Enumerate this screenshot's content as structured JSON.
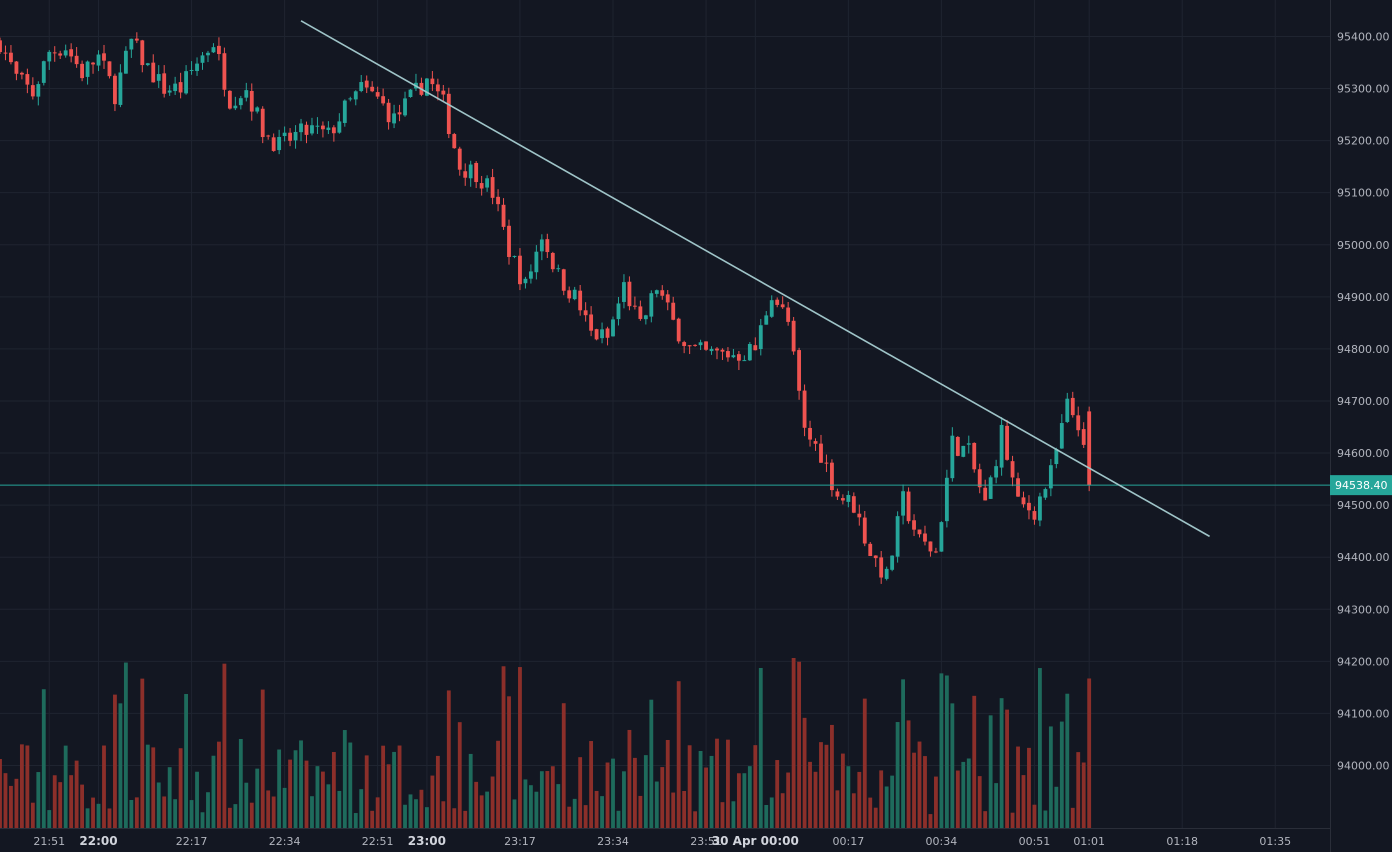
{
  "chart_data": {
    "type": "candlestick",
    "colors": {
      "background": "#131722",
      "up": "#26a69a",
      "down": "#ef5350",
      "volume_up": "#1e6b5c",
      "volume_down": "#8c2f2a",
      "trendline": "#9fc4c8",
      "last_price_line": "#26a69a",
      "grid": "#1f2430"
    },
    "y_axis": {
      "min": 93880,
      "max": 95470,
      "ticks": [
        94000,
        94100,
        94200,
        94300,
        94400,
        94500,
        94600,
        94700,
        94800,
        94900,
        95000,
        95100,
        95200,
        95300,
        95400
      ],
      "tick_labels": [
        "94000.00",
        "94100.00",
        "94200.00",
        "94300.00",
        "94400.00",
        "94500.00",
        "94600.00",
        "94700.00",
        "94800.00",
        "94900.00",
        "95000.00",
        "95100.00",
        "95200.00",
        "95300.00",
        "95400.00"
      ]
    },
    "x_axis": {
      "start": "21:42",
      "end": "01:45",
      "ticks": [
        {
          "label": "21:51",
          "bold": false
        },
        {
          "label": "22:00",
          "bold": true
        },
        {
          "label": "22:17",
          "bold": false
        },
        {
          "label": "22:34",
          "bold": false
        },
        {
          "label": "22:51",
          "bold": false
        },
        {
          "label": "23:00",
          "bold": true
        },
        {
          "label": "23:17",
          "bold": false
        },
        {
          "label": "23:34",
          "bold": false
        },
        {
          "label": "23:51",
          "bold": false
        },
        {
          "label": "30 Apr 00:00",
          "bold": true
        },
        {
          "label": "00:17",
          "bold": false
        },
        {
          "label": "00:34",
          "bold": false
        },
        {
          "label": "00:51",
          "bold": false
        },
        {
          "label": "01:01",
          "bold": false
        },
        {
          "label": "01:18",
          "bold": false
        },
        {
          "label": "01:35",
          "bold": false
        }
      ]
    },
    "last_price": 94538.4,
    "last_price_label": "94538.40",
    "trendline": {
      "start": {
        "time": "22:37",
        "price": 95430
      },
      "end": {
        "time": "01:23",
        "price": 94440
      }
    },
    "close_path": [
      [
        "21:42",
        95390
      ],
      [
        "21:45",
        95320
      ],
      [
        "21:48",
        95290
      ],
      [
        "21:51",
        95370
      ],
      [
        "21:54",
        95380
      ],
      [
        "21:57",
        95330
      ],
      [
        "22:00",
        95360
      ],
      [
        "22:03",
        95290
      ],
      [
        "22:06",
        95390
      ],
      [
        "22:09",
        95340
      ],
      [
        "22:12",
        95300
      ],
      [
        "22:15",
        95300
      ],
      [
        "22:18",
        95350
      ],
      [
        "22:21",
        95390
      ],
      [
        "22:24",
        95280
      ],
      [
        "22:27",
        95300
      ],
      [
        "22:30",
        95220
      ],
      [
        "22:33",
        95190
      ],
      [
        "22:36",
        95210
      ],
      [
        "22:39",
        95220
      ],
      [
        "22:42",
        95210
      ],
      [
        "22:45",
        95260
      ],
      [
        "22:48",
        95300
      ],
      [
        "22:51",
        95280
      ],
      [
        "22:54",
        95240
      ],
      [
        "22:57",
        95280
      ],
      [
        "23:00",
        95320
      ],
      [
        "23:03",
        95270
      ],
      [
        "23:06",
        95150
      ],
      [
        "23:09",
        95140
      ],
      [
        "23:12",
        95100
      ],
      [
        "23:15",
        94990
      ],
      [
        "23:18",
        94920
      ],
      [
        "23:21",
        95020
      ],
      [
        "23:24",
        94940
      ],
      [
        "23:27",
        94900
      ],
      [
        "23:30",
        94830
      ],
      [
        "23:33",
        94820
      ],
      [
        "23:36",
        94920
      ],
      [
        "23:39",
        94840
      ],
      [
        "23:42",
        94920
      ],
      [
        "23:45",
        94850
      ],
      [
        "23:48",
        94800
      ],
      [
        "23:51",
        94790
      ],
      [
        "23:54",
        94790
      ],
      [
        "23:57",
        94790
      ],
      [
        "00:00",
        94800
      ],
      [
        "00:03",
        94910
      ],
      [
        "00:06",
        94850
      ],
      [
        "00:09",
        94640
      ],
      [
        "00:12",
        94600
      ],
      [
        "00:15",
        94520
      ],
      [
        "00:18",
        94500
      ],
      [
        "00:21",
        94410
      ],
      [
        "00:24",
        94360
      ],
      [
        "00:27",
        94510
      ],
      [
        "00:30",
        94430
      ],
      [
        "00:33",
        94410
      ],
      [
        "00:36",
        94620
      ],
      [
        "00:39",
        94600
      ],
      [
        "00:42",
        94500
      ],
      [
        "00:45",
        94640
      ],
      [
        "00:48",
        94500
      ],
      [
        "00:51",
        94490
      ],
      [
        "00:54",
        94560
      ],
      [
        "00:57",
        94690
      ],
      [
        "00:59",
        94660
      ],
      [
        "01:01",
        94538.4
      ]
    ],
    "volume_scale_max": 100
  }
}
